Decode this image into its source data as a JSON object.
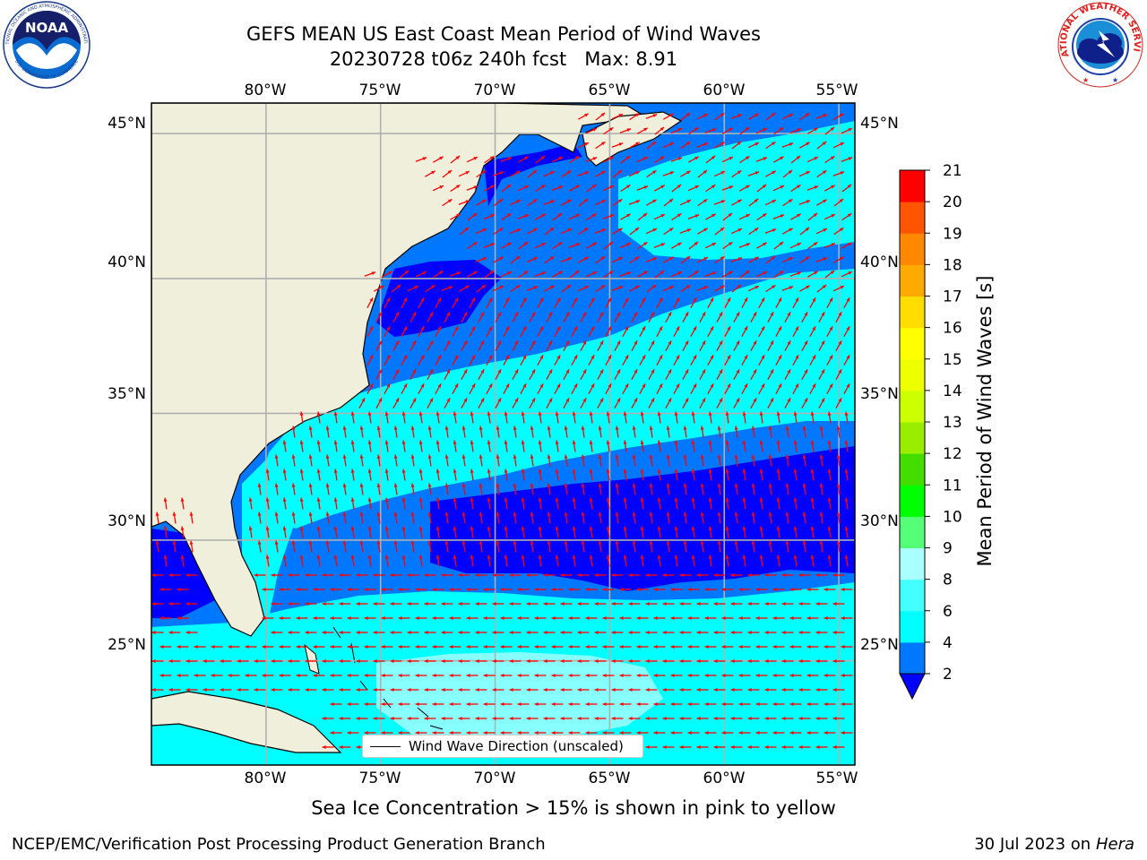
{
  "header": {
    "title": "GEFS MEAN US East Coast Mean Period of Wind Waves",
    "subtitle": "20230728 t06z 240h fcst   Max: 8.91"
  },
  "logos": {
    "left": {
      "text": "NOAA",
      "ring_text": "NATIONAL OCEANIC AND ATMOSPHERIC ADMINISTRATION",
      "ring_text_bottom": "U.S. DEPARTMENT OF COMMERCE"
    },
    "right": {
      "ring_text": "NATIONAL WEATHER SERVICE"
    }
  },
  "map": {
    "lon_labels": [
      "80°W",
      "75°W",
      "70°W",
      "65°W",
      "60°W",
      "55°W"
    ],
    "lat_labels": [
      "45°N",
      "40°N",
      "35°N",
      "30°N",
      "25°N"
    ],
    "lon_values": [
      -80,
      -75,
      -70,
      -65,
      -60,
      -55
    ],
    "lat_values": [
      45,
      40,
      35,
      30,
      25
    ],
    "extent": {
      "lon_min": -85,
      "lon_max": -54.3,
      "lat_min": 20.5,
      "lat_max": 46
    },
    "legend_label": "Wind Wave Direction (unscaled)",
    "arrow_color": "#ff0000",
    "land_color": "#efefdc",
    "grid_color": "#b0b0b0"
  },
  "colorbar": {
    "label": "Mean Period of Wind Waves [s]",
    "ticks": [
      "2",
      "4",
      "6",
      "8",
      "9",
      "10",
      "11",
      "12",
      "13",
      "14",
      "15",
      "16",
      "17",
      "18",
      "19",
      "20",
      "21"
    ],
    "colors": [
      "#0000ff",
      "#0077ff",
      "#00ffff",
      "#44ffff",
      "#88ffff",
      "#aaffff",
      "#55ff77",
      "#00ff00",
      "#44dd00",
      "#99ee00",
      "#ccff00",
      "#eeff00",
      "#ffff00",
      "#ffdd00",
      "#ffaa00",
      "#ff8800",
      "#ff5500",
      "#ff2200",
      "#ff0000"
    ]
  },
  "footer": {
    "note": "Sea Ice Concentration > 15% is shown in pink to yellow",
    "credit": "NCEP/EMC/Verification Post Processing Product Generation Branch",
    "date": "30 Jul 2023 on ",
    "machine": "Hera"
  }
}
